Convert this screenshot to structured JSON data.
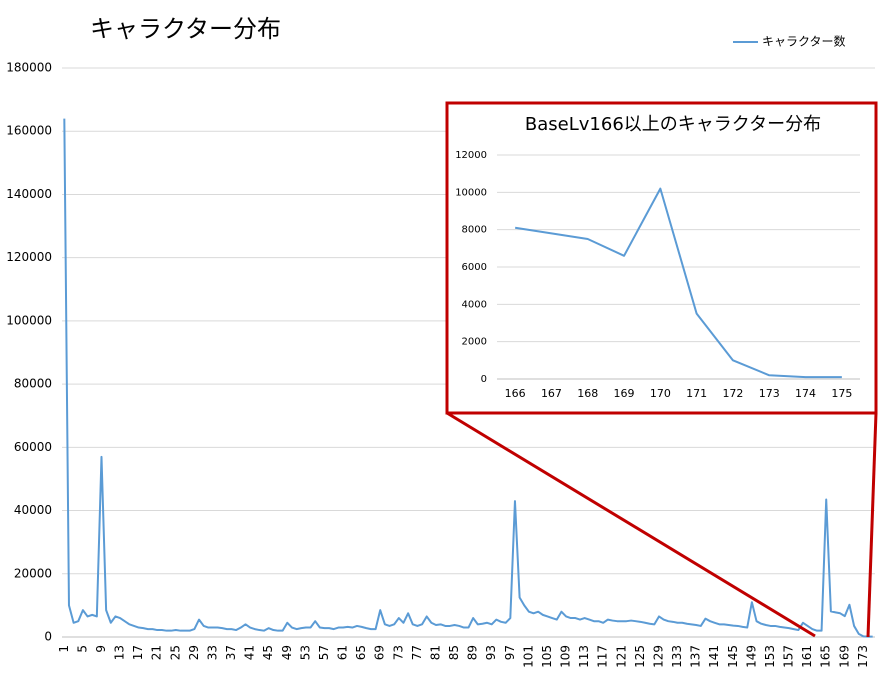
{
  "chart_data": [
    {
      "type": "line",
      "title": "キャラクター分布",
      "categories": [
        "1",
        null,
        null,
        null,
        "5",
        null,
        null,
        null,
        "9",
        null,
        null,
        null,
        "13",
        null,
        null,
        null,
        "17",
        null,
        null,
        null,
        "21",
        null,
        null,
        null,
        "25",
        null,
        null,
        null,
        "29",
        null,
        null,
        null,
        "33",
        null,
        null,
        null,
        "37",
        null,
        null,
        null,
        "41",
        null,
        null,
        null,
        "45",
        null,
        null,
        null,
        "49",
        null,
        null,
        null,
        "53",
        null,
        null,
        null,
        "57",
        null,
        null,
        null,
        "61",
        null,
        null,
        null,
        "65",
        null,
        null,
        null,
        "69",
        null,
        null,
        null,
        "73",
        null,
        null,
        null,
        "77",
        null,
        null,
        null,
        "81",
        null,
        null,
        null,
        "85",
        null,
        null,
        null,
        "89",
        null,
        null,
        null,
        "93",
        null,
        null,
        null,
        "97",
        null,
        null,
        null,
        "101",
        null,
        null,
        null,
        "105",
        null,
        null,
        null,
        "109",
        null,
        null,
        null,
        "113",
        null,
        null,
        null,
        "117",
        null,
        null,
        null,
        "121",
        null,
        null,
        null,
        "125",
        null,
        null,
        null,
        "129",
        null,
        null,
        null,
        "133",
        null,
        null,
        null,
        "137",
        null,
        null,
        null,
        "141",
        null,
        null,
        null,
        "145",
        null,
        null,
        null,
        "149",
        null,
        null,
        null,
        "153",
        null,
        null,
        null,
        "157",
        null,
        null,
        null,
        "161",
        null,
        null,
        null,
        "165",
        null,
        null,
        null,
        "169",
        null,
        null,
        null,
        "173",
        null,
        null
      ],
      "series": [
        {
          "name": "キャラクター数",
          "color": "#5b9bd5",
          "values": [
            164000,
            10000,
            4500,
            5000,
            8500,
            6500,
            7000,
            6500,
            57000,
            8500,
            4500,
            6500,
            6000,
            5000,
            4000,
            3500,
            3000,
            2800,
            2500,
            2500,
            2200,
            2200,
            2000,
            2000,
            2200,
            2000,
            2000,
            2000,
            2500,
            5500,
            3500,
            3000,
            3000,
            3000,
            2800,
            2500,
            2500,
            2200,
            3000,
            4000,
            3000,
            2500,
            2200,
            2000,
            2800,
            2200,
            2000,
            2000,
            4500,
            3000,
            2500,
            2800,
            3000,
            3000,
            5000,
            3000,
            2800,
            2800,
            2500,
            3000,
            3000,
            3200,
            3000,
            3500,
            3200,
            2800,
            2500,
            2500,
            8500,
            4000,
            3500,
            4000,
            6000,
            4500,
            7500,
            4000,
            3500,
            4000,
            6500,
            4500,
            3800,
            4000,
            3500,
            3500,
            3800,
            3500,
            3000,
            3000,
            6000,
            4000,
            4200,
            4500,
            4000,
            5500,
            4800,
            4500,
            6000,
            43000,
            12500,
            10000,
            8000,
            7500,
            8000,
            7000,
            6500,
            6000,
            5500,
            8000,
            6500,
            6000,
            6000,
            5500,
            6000,
            5500,
            5000,
            5000,
            4500,
            5500,
            5200,
            5000,
            5000,
            5000,
            5200,
            5000,
            4800,
            4500,
            4200,
            4000,
            6500,
            5500,
            5000,
            4800,
            4500,
            4500,
            4200,
            4000,
            3800,
            3500,
            5800,
            5000,
            4500,
            4000,
            4000,
            3800,
            3600,
            3500,
            3200,
            3000,
            11000,
            5000,
            4200,
            3800,
            3500,
            3500,
            3200,
            3000,
            2800,
            2500,
            2200,
            4500,
            3500,
            2500,
            2000,
            2000,
            43500,
            8100,
            7800,
            7500,
            6600,
            10200,
            3500,
            1000,
            200,
            100,
            100
          ]
        }
      ],
      "ylim": [
        0,
        180000
      ],
      "yticks": [
        0,
        20000,
        40000,
        60000,
        80000,
        100000,
        120000,
        140000,
        160000,
        180000
      ],
      "grid": true,
      "legend": "top-right"
    },
    {
      "type": "line",
      "title": "BaseLv166以上のキャラクター分布",
      "categories": [
        "166",
        "167",
        "168",
        "169",
        "170",
        "171",
        "172",
        "173",
        "174",
        "175"
      ],
      "series": [
        {
          "color": "#5b9bd5",
          "values": [
            8100,
            7800,
            7500,
            6600,
            10200,
            3500,
            1000,
            200,
            100,
            100
          ]
        }
      ],
      "ylim": [
        0,
        12000
      ],
      "yticks": [
        0,
        2000,
        4000,
        6000,
        8000,
        10000,
        12000
      ],
      "grid": true
    }
  ]
}
